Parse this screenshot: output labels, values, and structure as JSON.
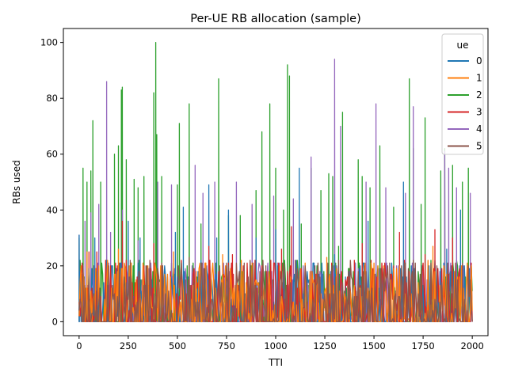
{
  "chart_data": {
    "type": "line",
    "title": "Per-UE RB allocation (sample)",
    "xlabel": "TTI",
    "ylabel": "RBs used",
    "xlim": [
      -80,
      2080
    ],
    "ylim": [
      -5.0,
      105.0
    ],
    "xticks": [
      0,
      250,
      500,
      750,
      1000,
      1250,
      1500,
      1750,
      2000
    ],
    "yticks": [
      0,
      20,
      40,
      60,
      80,
      100
    ],
    "grid": false,
    "legend": {
      "title": "ue",
      "placement": "top-right"
    },
    "draw_order": [
      2,
      4,
      0,
      3,
      1,
      5
    ],
    "series": [
      {
        "name": "0",
        "color": "#1f77b4",
        "peaks": [
          [
            0,
            31
          ],
          [
            80,
            30
          ],
          [
            250,
            36
          ],
          [
            310,
            30
          ],
          [
            490,
            32
          ],
          [
            530,
            41
          ],
          [
            660,
            49
          ],
          [
            700,
            30
          ],
          [
            760,
            40
          ],
          [
            900,
            30
          ],
          [
            1000,
            33
          ],
          [
            1120,
            55
          ],
          [
            1300,
            24
          ],
          [
            1470,
            36
          ],
          [
            1650,
            50
          ],
          [
            1870,
            26
          ],
          [
            1940,
            40
          ]
        ]
      },
      {
        "name": "1",
        "color": "#ff7f0e",
        "peaks": [
          [
            40,
            25
          ],
          [
            200,
            26
          ],
          [
            480,
            25
          ],
          [
            730,
            24
          ],
          [
            1020,
            20
          ],
          [
            1260,
            23
          ],
          [
            1520,
            20
          ],
          [
            1800,
            27
          ]
        ]
      },
      {
        "name": "2",
        "color": "#2ca02c",
        "peaks": [
          [
            0,
            30
          ],
          [
            20,
            55
          ],
          [
            40,
            50
          ],
          [
            60,
            54
          ],
          [
            70,
            72
          ],
          [
            110,
            50
          ],
          [
            180,
            60
          ],
          [
            200,
            63
          ],
          [
            215,
            83
          ],
          [
            220,
            84
          ],
          [
            240,
            58
          ],
          [
            280,
            51
          ],
          [
            300,
            48
          ],
          [
            330,
            52
          ],
          [
            380,
            82
          ],
          [
            390,
            100
          ],
          [
            395,
            67
          ],
          [
            420,
            52
          ],
          [
            500,
            49
          ],
          [
            510,
            71
          ],
          [
            560,
            78
          ],
          [
            620,
            35
          ],
          [
            710,
            87
          ],
          [
            760,
            38
          ],
          [
            820,
            38
          ],
          [
            900,
            47
          ],
          [
            930,
            68
          ],
          [
            970,
            78
          ],
          [
            1000,
            55
          ],
          [
            1040,
            40
          ],
          [
            1060,
            92
          ],
          [
            1070,
            88
          ],
          [
            1130,
            35
          ],
          [
            1180,
            55
          ],
          [
            1230,
            47
          ],
          [
            1270,
            53
          ],
          [
            1290,
            52
          ],
          [
            1320,
            27
          ],
          [
            1340,
            75
          ],
          [
            1420,
            58
          ],
          [
            1440,
            52
          ],
          [
            1480,
            48
          ],
          [
            1530,
            63
          ],
          [
            1600,
            41
          ],
          [
            1680,
            87
          ],
          [
            1700,
            62
          ],
          [
            1740,
            42
          ],
          [
            1760,
            73
          ],
          [
            1840,
            54
          ],
          [
            1860,
            62
          ],
          [
            1900,
            56
          ],
          [
            1950,
            50
          ],
          [
            1980,
            55
          ]
        ]
      },
      {
        "name": "3",
        "color": "#d62728",
        "peaks": [
          [
            50,
            25
          ],
          [
            90,
            25
          ],
          [
            220,
            36
          ],
          [
            380,
            28
          ],
          [
            660,
            27
          ],
          [
            780,
            24
          ],
          [
            1030,
            26
          ],
          [
            1080,
            34
          ],
          [
            1400,
            22
          ],
          [
            1440,
            28
          ],
          [
            1630,
            32
          ],
          [
            1760,
            24
          ],
          [
            1810,
            33
          ],
          [
            1900,
            30
          ]
        ]
      },
      {
        "name": "4",
        "color": "#9467bd",
        "peaks": [
          [
            0,
            31
          ],
          [
            30,
            36
          ],
          [
            60,
            39
          ],
          [
            100,
            42
          ],
          [
            140,
            86
          ],
          [
            160,
            32
          ],
          [
            220,
            40
          ],
          [
            300,
            29
          ],
          [
            400,
            50
          ],
          [
            470,
            49
          ],
          [
            590,
            56
          ],
          [
            630,
            46
          ],
          [
            690,
            50
          ],
          [
            800,
            50
          ],
          [
            880,
            42
          ],
          [
            990,
            45
          ],
          [
            1090,
            44
          ],
          [
            1180,
            59
          ],
          [
            1300,
            94
          ],
          [
            1330,
            70
          ],
          [
            1460,
            50
          ],
          [
            1510,
            78
          ],
          [
            1560,
            48
          ],
          [
            1660,
            46
          ],
          [
            1700,
            77
          ],
          [
            1860,
            61
          ],
          [
            1880,
            55
          ],
          [
            1920,
            48
          ],
          [
            1990,
            46
          ]
        ]
      },
      {
        "name": "5",
        "color": "#8c564b",
        "peaks": [
          [
            20,
            20
          ],
          [
            90,
            18
          ],
          [
            150,
            20
          ],
          [
            260,
            22
          ],
          [
            340,
            20
          ],
          [
            420,
            21
          ],
          [
            560,
            23
          ],
          [
            640,
            19
          ],
          [
            760,
            20
          ],
          [
            840,
            21
          ],
          [
            950,
            20
          ],
          [
            1100,
            22
          ],
          [
            1200,
            20
          ],
          [
            1320,
            22
          ],
          [
            1450,
            20
          ],
          [
            1580,
            21
          ],
          [
            1700,
            22
          ],
          [
            1820,
            20
          ],
          [
            1950,
            21
          ]
        ]
      }
    ]
  }
}
